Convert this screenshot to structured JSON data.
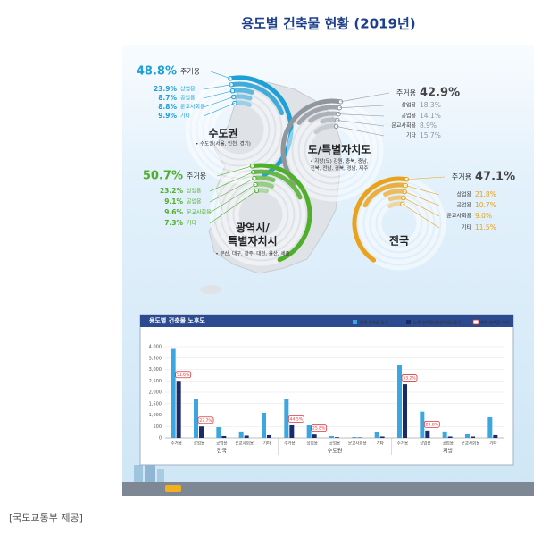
{
  "header": {
    "title": "용도별 건축물 현황 (2019년)",
    "caption": "[국토교통부 제공]"
  },
  "chart_data": [
    {
      "type": "radial_bar",
      "title": "수도권",
      "subtitle": "• 수도권(서울, 인천, 경기)",
      "color": "#1e9fd6",
      "categories": [
        "주거용",
        "상업용",
        "공업용",
        "문교사회용",
        "기타"
      ],
      "values": [
        48.8,
        23.9,
        8.7,
        8.8,
        9.9
      ],
      "value_labels": [
        "48.8%",
        "23.9%",
        "8.7%",
        "8.8%",
        "9.9%"
      ]
    },
    {
      "type": "radial_bar",
      "title": "도/특별자치도",
      "subtitle": "• 지방(도) 강원, 충북, 충남, 전북, 전남, 경북, 경남, 제주",
      "color": "#8f969c",
      "categories": [
        "주거용",
        "상업용",
        "공업용",
        "문교사회용",
        "기타"
      ],
      "values": [
        42.9,
        18.3,
        14.1,
        8.9,
        15.7
      ],
      "value_labels": [
        "42.9%",
        "18.3%",
        "14.1%",
        "8.9%",
        "15.7%"
      ]
    },
    {
      "type": "radial_bar",
      "title": "광역시/특별자치시",
      "subtitle": "• 부산, 대구, 광주, 대전, 울산, 세종",
      "color": "#4fae2a",
      "categories": [
        "주거용",
        "상업용",
        "공업용",
        "문교사회용",
        "기타"
      ],
      "values": [
        50.7,
        23.2,
        9.1,
        9.6,
        7.3
      ],
      "value_labels": [
        "50.7%",
        "23.2%",
        "9.1%",
        "9.6%",
        "7.3%"
      ]
    },
    {
      "type": "radial_bar",
      "title": "전국",
      "color": "#e9a21a",
      "categories": [
        "주거용",
        "상업용",
        "공업용",
        "문교사회용",
        "기타"
      ],
      "values": [
        47.1,
        21.8,
        10.7,
        9.0,
        11.5
      ],
      "value_labels": [
        "47.1%",
        "21.8%",
        "10.7%",
        "9.0%",
        "11.5%"
      ]
    },
    {
      "type": "bar",
      "title": "용도별 건축물 노후도",
      "groups": [
        "전국",
        "수도권",
        "지방"
      ],
      "categories": [
        "주거용",
        "상업용",
        "공업용",
        "문교사회용",
        "기타",
        "주거용",
        "상업용",
        "공업용",
        "문교사회용",
        "기타",
        "주거용",
        "상업용",
        "공업용",
        "문교사회용",
        "기타"
      ],
      "series": [
        {
          "name": "전체 건축물 동수",
          "color": "#3aa7e0",
          "values": [
            3900,
            1700,
            470,
            280,
            1100,
            1700,
            550,
            80,
            40,
            250,
            3200,
            1150,
            280,
            160,
            900
          ]
        },
        {
          "name": "노후 건축물(30년이상) 동수",
          "color": "#1b2a6b",
          "values": [
            2500,
            500,
            80,
            100,
            120,
            550,
            150,
            30,
            20,
            60,
            2350,
            320,
            60,
            60,
            120
          ]
        },
        {
          "name": "전체 건축물 대비",
          "color": "#d9343a",
          "values": [
            51.6,
            27.7,
            null,
            null,
            null,
            44.5,
            25.8,
            null,
            null,
            null,
            53.2,
            28.8,
            null,
            null,
            null
          ],
          "value_labels": [
            "51.6%",
            "27.7%",
            null,
            null,
            null,
            "44.5%",
            "25.8%",
            null,
            null,
            null,
            "53.2%",
            "28.8%",
            null,
            null,
            null
          ]
        }
      ],
      "ylim": [
        0,
        4000
      ],
      "yticks": [
        0,
        {
          "value": 500,
          "label": "500"
        },
        {
          "value": 1000,
          "label": "1,000"
        },
        {
          "value": 1500,
          "label": "1,500"
        },
        {
          "value": 2000,
          "label": "2,000"
        },
        {
          "value": 2500,
          "label": "2,500"
        },
        {
          "value": 3000,
          "label": "3,000"
        },
        {
          "value": 3500,
          "label": "3,500"
        },
        {
          "value": 4000,
          "label": "4,000"
        }
      ],
      "grid": true
    }
  ]
}
